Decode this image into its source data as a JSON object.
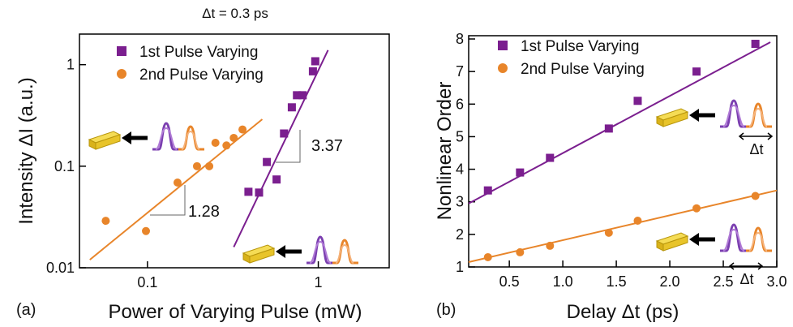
{
  "chart_data": [
    {
      "type": "scatter",
      "title": "Δt = 0.3 ps",
      "panel_label": "(a)",
      "xlabel": "Power of Varying Pulse (mW)",
      "ylabel": "Intensity ΔI (a.u.)",
      "xscale": "log",
      "yscale": "log",
      "xlim": [
        0.04,
        2.6
      ],
      "ylim": [
        0.01,
        2
      ],
      "xticks": [
        0.1,
        1
      ],
      "yticks": [
        0.01,
        0.1,
        1
      ],
      "legend": "upper left",
      "series": [
        {
          "name": "1st Pulse Varying",
          "color": "#7b1f8f",
          "marker": "square",
          "x": [
            0.39,
            0.45,
            0.5,
            0.57,
            0.63,
            0.7,
            0.75,
            0.81,
            0.93,
            0.96
          ],
          "y": [
            0.056,
            0.055,
            0.11,
            0.074,
            0.21,
            0.38,
            0.5,
            0.5,
            0.86,
            1.08
          ]
        },
        {
          "name": "2nd Pulse Varying",
          "color": "#e8852a",
          "marker": "circle",
          "x": [
            0.057,
            0.098,
            0.15,
            0.195,
            0.23,
            0.25,
            0.29,
            0.32,
            0.36
          ],
          "y": [
            0.029,
            0.023,
            0.069,
            0.1,
            0.1,
            0.17,
            0.16,
            0.19,
            0.23
          ]
        }
      ],
      "fits": [
        {
          "color": "#e8852a",
          "x": [
            0.046,
            0.47
          ],
          "y": [
            0.012,
            0.29
          ]
        },
        {
          "color": "#7b1f8f",
          "x": [
            0.32,
            1.14
          ],
          "y": [
            0.016,
            1.39
          ]
        }
      ],
      "annotations": [
        "1.28",
        "3.37"
      ]
    },
    {
      "type": "scatter",
      "panel_label": "(b)",
      "xlabel": "Delay Δt (ps)",
      "ylabel": "Nonlinear Order",
      "xlim": [
        0.12,
        3.0
      ],
      "ylim": [
        1,
        8.1
      ],
      "xticks": [
        0.5,
        {
          "value": 1,
          "label": "1.0"
        },
        1.5,
        {
          "value": 2,
          "label": "2.0"
        },
        2.5,
        {
          "value": 3,
          "label": "3.0"
        }
      ],
      "yticks": [
        1,
        2,
        3,
        4,
        5,
        6,
        7,
        8
      ],
      "legend": "upper left",
      "series": [
        {
          "name": "1st Pulse Varying",
          "color": "#7b1f8f",
          "marker": "square",
          "x": [
            0.3,
            0.6,
            0.88,
            1.43,
            1.7,
            2.25,
            2.8
          ],
          "y": [
            3.35,
            3.9,
            4.35,
            5.25,
            6.1,
            7.0,
            7.85
          ]
        },
        {
          "name": "2nd Pulse Varying",
          "color": "#e8852a",
          "marker": "circle",
          "x": [
            0.3,
            0.6,
            0.88,
            1.43,
            1.7,
            2.25,
            2.8
          ],
          "y": [
            1.3,
            1.45,
            1.65,
            2.05,
            2.42,
            2.8,
            3.18
          ]
        }
      ],
      "fits": [
        {
          "color": "#7b1f8f",
          "x": [
            0.12,
            2.94
          ],
          "y": [
            2.95,
            7.9
          ]
        },
        {
          "color": "#e8852a",
          "x": [
            0.12,
            3.0
          ],
          "y": [
            1.15,
            3.35
          ]
        }
      ],
      "annotations": [
        "Δt",
        "Δt"
      ]
    }
  ]
}
